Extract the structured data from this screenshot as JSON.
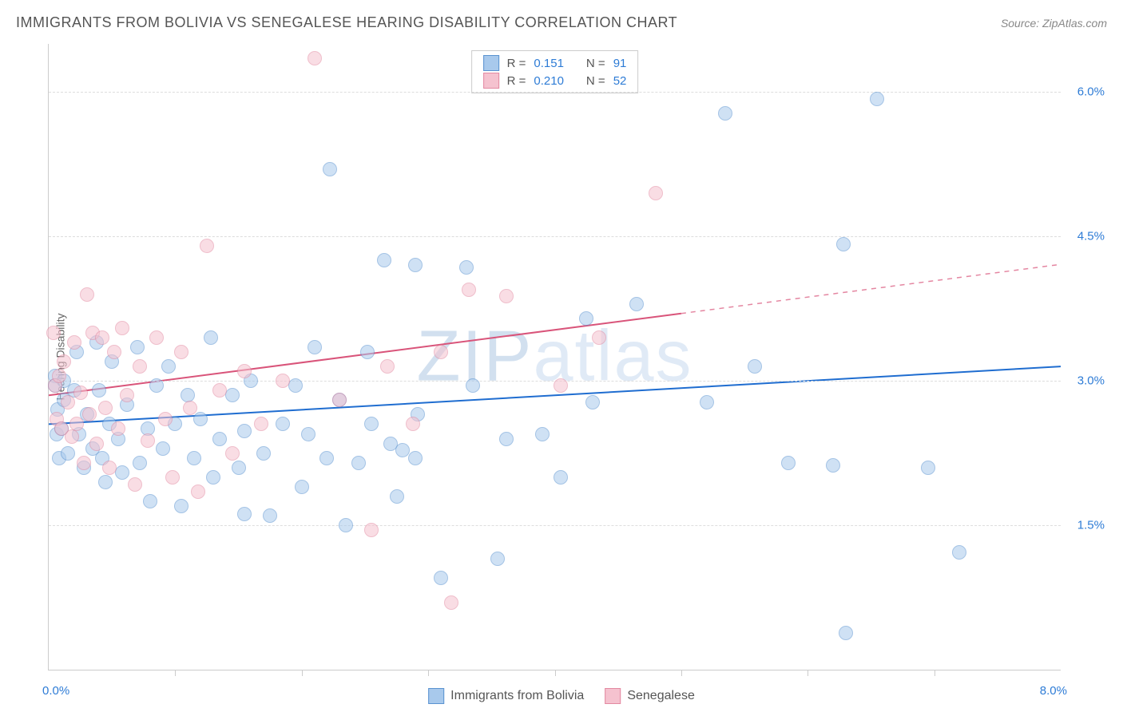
{
  "title": "IMMIGRANTS FROM BOLIVIA VS SENEGALESE HEARING DISABILITY CORRELATION CHART",
  "source_label": "Source:",
  "source_site": "ZipAtlas.com",
  "watermark": {
    "pre": "ZIP",
    "post": "atlas"
  },
  "chart": {
    "type": "scatter",
    "y_axis_label": "Hearing Disability",
    "xlim": [
      0.0,
      8.0
    ],
    "ylim": [
      0.0,
      6.5
    ],
    "x_lo_label": "0.0%",
    "x_hi_label": "8.0%",
    "y_ticks": [
      {
        "v": 1.5,
        "label": "1.5%"
      },
      {
        "v": 3.0,
        "label": "3.0%"
      },
      {
        "v": 4.5,
        "label": "4.5%"
      },
      {
        "v": 6.0,
        "label": "6.0%"
      }
    ],
    "x_tick_step": 1.0,
    "background_color": "#ffffff",
    "grid_color": "#dddddd",
    "axis_color": "#cccccc",
    "tick_label_color": "#2e7cd6",
    "dot_radius": 9,
    "dot_opacity": 0.55,
    "line_width": 2
  },
  "series": [
    {
      "key": "bolivia",
      "label": "Immigrants from Bolivia",
      "fill_color": "#a8c9ec",
      "stroke_color": "#5a93d0",
      "line_color": "#1f6dd0",
      "R": "0.151",
      "N": "91",
      "trend": {
        "x1": 0.0,
        "y1": 2.55,
        "x2": 8.0,
        "y2": 3.15,
        "extrapolate_from_x": 8.0
      },
      "points": [
        [
          0.05,
          3.05
        ],
        [
          0.05,
          2.95
        ],
        [
          0.06,
          2.45
        ],
        [
          0.07,
          2.7
        ],
        [
          0.08,
          2.2
        ],
        [
          0.1,
          2.5
        ],
        [
          0.12,
          3.0
        ],
        [
          0.12,
          2.8
        ],
        [
          0.15,
          2.25
        ],
        [
          0.2,
          2.9
        ],
        [
          0.22,
          3.3
        ],
        [
          0.24,
          2.45
        ],
        [
          0.28,
          2.1
        ],
        [
          0.3,
          2.65
        ],
        [
          0.35,
          2.3
        ],
        [
          0.38,
          3.4
        ],
        [
          0.4,
          2.9
        ],
        [
          0.42,
          2.2
        ],
        [
          0.45,
          1.95
        ],
        [
          0.48,
          2.55
        ],
        [
          0.5,
          3.2
        ],
        [
          0.55,
          2.4
        ],
        [
          0.58,
          2.05
        ],
        [
          0.62,
          2.75
        ],
        [
          0.7,
          3.35
        ],
        [
          0.72,
          2.15
        ],
        [
          0.78,
          2.5
        ],
        [
          0.8,
          1.75
        ],
        [
          0.85,
          2.95
        ],
        [
          0.9,
          2.3
        ],
        [
          0.95,
          3.15
        ],
        [
          1.0,
          2.55
        ],
        [
          1.05,
          1.7
        ],
        [
          1.1,
          2.85
        ],
        [
          1.15,
          2.2
        ],
        [
          1.2,
          2.6
        ],
        [
          1.28,
          3.45
        ],
        [
          1.3,
          2.0
        ],
        [
          1.35,
          2.4
        ],
        [
          1.45,
          2.85
        ],
        [
          1.5,
          2.1
        ],
        [
          1.55,
          1.62
        ],
        [
          1.55,
          2.48
        ],
        [
          1.6,
          3.0
        ],
        [
          1.7,
          2.25
        ],
        [
          1.75,
          1.6
        ],
        [
          1.85,
          2.55
        ],
        [
          1.95,
          2.95
        ],
        [
          2.0,
          1.9
        ],
        [
          2.05,
          2.45
        ],
        [
          2.1,
          3.35
        ],
        [
          2.2,
          2.2
        ],
        [
          2.22,
          5.2
        ],
        [
          2.3,
          2.8
        ],
        [
          2.35,
          1.5
        ],
        [
          2.45,
          2.15
        ],
        [
          2.52,
          3.3
        ],
        [
          2.55,
          2.55
        ],
        [
          2.65,
          4.25
        ],
        [
          2.7,
          2.35
        ],
        [
          2.75,
          1.8
        ],
        [
          2.8,
          2.28
        ],
        [
          2.9,
          2.2
        ],
        [
          2.92,
          2.65
        ],
        [
          2.9,
          4.2
        ],
        [
          3.1,
          0.95
        ],
        [
          3.3,
          4.18
        ],
        [
          3.35,
          2.95
        ],
        [
          3.55,
          1.15
        ],
        [
          3.62,
          2.4
        ],
        [
          3.9,
          2.45
        ],
        [
          4.05,
          2.0
        ],
        [
          4.25,
          3.65
        ],
        [
          4.3,
          2.78
        ],
        [
          4.65,
          3.8
        ],
        [
          5.2,
          2.78
        ],
        [
          5.35,
          5.78
        ],
        [
          5.58,
          3.15
        ],
        [
          5.85,
          2.15
        ],
        [
          6.2,
          2.12
        ],
        [
          6.28,
          4.42
        ],
        [
          6.3,
          0.38
        ],
        [
          6.55,
          5.93
        ],
        [
          6.95,
          2.1
        ],
        [
          7.2,
          1.22
        ]
      ]
    },
    {
      "key": "senegalese",
      "label": "Senegalese",
      "fill_color": "#f5c2cf",
      "stroke_color": "#e389a1",
      "line_color": "#d9547a",
      "R": "0.210",
      "N": "52",
      "trend": {
        "x1": 0.0,
        "y1": 2.85,
        "x2": 5.0,
        "y2": 3.7,
        "extrapolate_from_x": 5.0
      },
      "points": [
        [
          0.04,
          3.5
        ],
        [
          0.05,
          2.95
        ],
        [
          0.06,
          2.6
        ],
        [
          0.08,
          3.05
        ],
        [
          0.1,
          2.5
        ],
        [
          0.12,
          3.2
        ],
        [
          0.15,
          2.78
        ],
        [
          0.18,
          2.42
        ],
        [
          0.2,
          3.4
        ],
        [
          0.22,
          2.55
        ],
        [
          0.25,
          2.88
        ],
        [
          0.28,
          2.15
        ],
        [
          0.3,
          3.9
        ],
        [
          0.32,
          2.65
        ],
        [
          0.35,
          3.5
        ],
        [
          0.38,
          2.35
        ],
        [
          0.42,
          3.45
        ],
        [
          0.45,
          2.72
        ],
        [
          0.48,
          2.1
        ],
        [
          0.52,
          3.3
        ],
        [
          0.55,
          2.5
        ],
        [
          0.58,
          3.55
        ],
        [
          0.62,
          2.85
        ],
        [
          0.68,
          1.92
        ],
        [
          0.72,
          3.15
        ],
        [
          0.78,
          2.38
        ],
        [
          0.85,
          3.45
        ],
        [
          0.92,
          2.6
        ],
        [
          0.98,
          2.0
        ],
        [
          1.05,
          3.3
        ],
        [
          1.12,
          2.72
        ],
        [
          1.18,
          1.85
        ],
        [
          1.25,
          4.4
        ],
        [
          1.35,
          2.9
        ],
        [
          1.45,
          2.25
        ],
        [
          1.55,
          3.1
        ],
        [
          1.68,
          2.55
        ],
        [
          1.85,
          3.0
        ],
        [
          2.1,
          6.35
        ],
        [
          2.3,
          2.8
        ],
        [
          2.55,
          1.45
        ],
        [
          2.68,
          3.15
        ],
        [
          2.88,
          2.55
        ],
        [
          3.1,
          3.3
        ],
        [
          3.18,
          0.7
        ],
        [
          3.32,
          3.95
        ],
        [
          3.62,
          3.88
        ],
        [
          4.05,
          2.95
        ],
        [
          4.35,
          3.45
        ],
        [
          4.8,
          4.95
        ]
      ]
    }
  ],
  "legend_top": {
    "R_label": "R =",
    "N_label": "N ="
  }
}
